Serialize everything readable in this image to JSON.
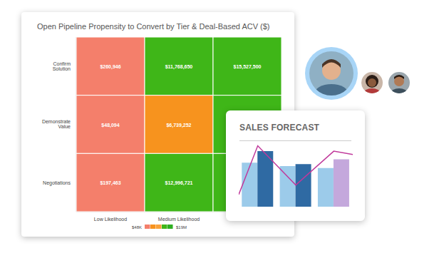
{
  "chart_data": [
    {
      "type": "heatmap",
      "title": "Open Pipeline Propensity to Convert by Tier & Deal-Based ACV ($)",
      "x_categories": [
        "Low Likelihood",
        "Medium Likelihood",
        null
      ],
      "y_categories": [
        "Confirm Solution",
        "Demonstrate Value",
        "Negotiations"
      ],
      "cells": [
        [
          260946,
          11768650,
          15527500
        ],
        [
          48094,
          6739252,
          null
        ],
        [
          197463,
          12996721,
          null
        ]
      ],
      "value_labels": [
        [
          "$260,946",
          "$11,768,650",
          "$15,527,500"
        ],
        [
          "$48,094",
          "$6,739,252",
          null
        ],
        [
          "$197,463",
          "$12,996,721",
          null
        ]
      ],
      "colors": [
        [
          "#f47f6b",
          "#3fb618",
          "#3fb618"
        ],
        [
          "#f47f6b",
          "#f7931e",
          "#3fb618"
        ],
        [
          "#f47f6b",
          "#3fb618",
          "#3fb618"
        ]
      ],
      "colorbar": {
        "range": [
          48000,
          19000000
        ],
        "ticks": [
          {
            "value": 48000,
            "label": "$48K"
          },
          {
            "value": 19000000,
            "label": "$19M"
          }
        ],
        "colors": [
          "#f47f6b",
          "#f7931e",
          "#f9a23a",
          "#3fb618",
          "#2fae22"
        ]
      },
      "data_labels": true
    },
    {
      "type": "bar",
      "title": "SALES FORECAST",
      "categories": [
        null,
        null,
        null
      ],
      "series": [
        {
          "color": "#9ccbea",
          "values": [
            65,
            60,
            57
          ]
        },
        {
          "colors": [
            "#2f6aa3",
            "#2f6aa3",
            "#c4a8dc"
          ],
          "values": [
            82,
            63,
            70
          ]
        },
        {
          "type": "line",
          "color": "#c0399b",
          "x": [
            -0.5,
            0,
            1,
            2,
            2.5
          ],
          "values": [
            18,
            90,
            32,
            82,
            77
          ]
        }
      ],
      "xlim": [
        -0.5,
        2.5
      ],
      "ylim": [
        0,
        100
      ],
      "tick_labels": false
    }
  ]
}
